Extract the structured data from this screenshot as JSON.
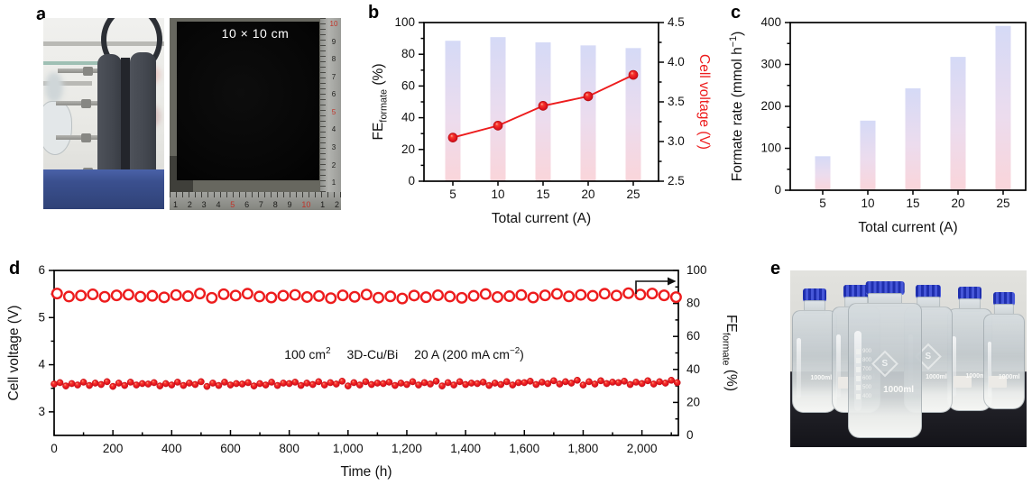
{
  "figure": {
    "background": "#ffffff",
    "accent_red": "#ed1c1d",
    "panel_letters": {
      "a": "a",
      "b": "b",
      "c": "c",
      "d": "d",
      "e": "e"
    }
  },
  "panel_a": {
    "electrode_caption": "10 × 10 cm",
    "ruler_bottom_numbers": [
      "1",
      "2",
      "3",
      "4",
      "5",
      "6",
      "7",
      "8",
      "9",
      "10",
      "1",
      "2"
    ],
    "ruler_bottom_red": [
      "5",
      "10"
    ],
    "ruler_right_numbers": [
      "10",
      "9",
      "8",
      "7",
      "6",
      "5",
      "4",
      "3",
      "2",
      "1"
    ],
    "ruler_right_red": [
      "10",
      "5"
    ]
  },
  "panel_e": {
    "bottle_volume_label": "1000ml",
    "bottle_logo": "S",
    "bottle_graduations": [
      "900",
      "800",
      "700",
      "600",
      "500",
      "400"
    ]
  },
  "chart_data": [
    {
      "id": "b",
      "type": "bar+line",
      "categories": [
        5,
        10,
        15,
        20,
        25
      ],
      "xlabel": "Total current (A)",
      "ylabel_left": "FE_{formate} (%)",
      "ylabel_right": "Cell voltage (V)",
      "ylim_left": [
        0,
        100
      ],
      "yticks_left": [
        0,
        20,
        40,
        60,
        80,
        100
      ],
      "yticks_left_minor": [
        10,
        30,
        50,
        70,
        90
      ],
      "ylim_right": [
        2.5,
        4.5
      ],
      "yticks_right": [
        "2.5",
        "3.0",
        "3.5",
        "4.0",
        "4.5"
      ],
      "yticks_right_minor": [
        2.75,
        3.25,
        3.75,
        4.25
      ],
      "bar_series": {
        "name": "FE formate",
        "axis": "left",
        "values": [
          88.5,
          90.8,
          87.5,
          85.6,
          83.9
        ]
      },
      "line_series": {
        "name": "Cell voltage",
        "axis": "right",
        "values": [
          3.05,
          3.2,
          3.45,
          3.57,
          3.84
        ]
      },
      "bar_gradient": [
        "#d5daf6",
        "#ecdcee",
        "#fad5da"
      ],
      "line_color": "#ed1c1d"
    },
    {
      "id": "c",
      "type": "bar",
      "categories": [
        5,
        10,
        15,
        20,
        25
      ],
      "values": [
        81,
        166,
        243,
        318,
        392
      ],
      "xlabel": "Total current (A)",
      "ylabel": "Formate rate (mmol h^{−1})",
      "ylim": [
        0,
        400
      ],
      "yticks": [
        0,
        100,
        200,
        300,
        400
      ],
      "yticks_minor": [
        50,
        150,
        250,
        350
      ],
      "bar_gradient": [
        "#d5daf6",
        "#ecdcee",
        "#fad5da"
      ]
    },
    {
      "id": "d",
      "type": "scatter",
      "xlabel": "Time (h)",
      "ylabel_left": "Cell voltage (V)",
      "ylabel_right": "FE_{formate} (%)",
      "xlim": [
        0,
        2124
      ],
      "xticks": [
        0,
        200,
        400,
        600,
        800,
        1000,
        1200,
        1400,
        1600,
        1800,
        2000
      ],
      "xtick_labels": [
        "0",
        "200",
        "400",
        "600",
        "800",
        "1,000",
        "1,200",
        "1,400",
        "1,600",
        "1,800",
        "2,000"
      ],
      "xticks_minor": [
        100,
        300,
        500,
        700,
        900,
        1100,
        1300,
        1500,
        1700,
        1900,
        2100
      ],
      "ylim_left": [
        2.5,
        6
      ],
      "yticks_left": [
        3,
        4,
        5,
        6
      ],
      "yticks_left_minor": [
        3.5,
        4.5,
        5.5
      ],
      "ylim_right": [
        0,
        100
      ],
      "yticks_right": [
        0,
        20,
        40,
        60,
        80,
        100
      ],
      "yticks_right_minor": [
        10,
        30,
        50,
        70,
        90
      ],
      "annotation": "100 cm^{2}  3D-Cu/Bi  20 A (200 mA cm^{−2})",
      "series": [
        {
          "name": "Cell voltage",
          "axis": "left",
          "marker": "filled-circle",
          "color": "#ed1c1d",
          "x_start": 0,
          "x_step": 20,
          "y": [
            3.59,
            3.62,
            3.55,
            3.6,
            3.57,
            3.63,
            3.56,
            3.61,
            3.58,
            3.64,
            3.54,
            3.61,
            3.56,
            3.63,
            3.57,
            3.6,
            3.59,
            3.62,
            3.55,
            3.6,
            3.57,
            3.63,
            3.56,
            3.61,
            3.58,
            3.64,
            3.54,
            3.61,
            3.56,
            3.63,
            3.57,
            3.6,
            3.59,
            3.62,
            3.55,
            3.6,
            3.57,
            3.63,
            3.56,
            3.61,
            3.6,
            3.63,
            3.56,
            3.61,
            3.58,
            3.64,
            3.57,
            3.62,
            3.59,
            3.65,
            3.55,
            3.62,
            3.57,
            3.64,
            3.58,
            3.61,
            3.6,
            3.63,
            3.56,
            3.61,
            3.58,
            3.64,
            3.57,
            3.62,
            3.59,
            3.65,
            3.55,
            3.62,
            3.57,
            3.64,
            3.58,
            3.61,
            3.6,
            3.63,
            3.56,
            3.61,
            3.58,
            3.64,
            3.57,
            3.62,
            3.62,
            3.65,
            3.58,
            3.63,
            3.6,
            3.66,
            3.59,
            3.64,
            3.61,
            3.67,
            3.57,
            3.64,
            3.59,
            3.66,
            3.6,
            3.63,
            3.62,
            3.65,
            3.58,
            3.63,
            3.6,
            3.66,
            3.59,
            3.64,
            3.61,
            3.67,
            3.62
          ]
        },
        {
          "name": "FE formate",
          "axis": "right",
          "marker": "open-circle",
          "color": "#ed1c1d",
          "x_start": 10,
          "x_step": 40.5,
          "y": [
            86.0,
            84.2,
            84.8,
            85.5,
            84.0,
            84.9,
            85.3,
            84.1,
            84.6,
            83.7,
            85.1,
            84.4,
            86.0,
            83.4,
            85.6,
            84.8,
            85.9,
            84.2,
            83.6,
            84.7,
            85.2,
            83.9,
            84.5,
            83.2,
            84.9,
            84.0,
            85.4,
            83.5,
            84.3,
            83.0,
            84.8,
            83.8,
            85.0,
            84.2,
            83.4,
            84.6,
            85.7,
            83.9,
            84.4,
            85.1,
            83.6,
            84.9,
            85.8,
            84.3,
            85.2,
            84.6,
            85.9,
            84.8,
            86.2,
            85.4,
            86.0,
            84.9,
            83.8
          ]
        }
      ]
    }
  ]
}
